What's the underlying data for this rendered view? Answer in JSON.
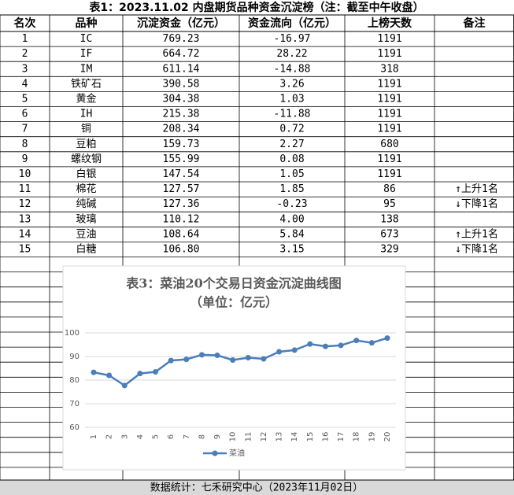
{
  "header": {
    "title": "表1：2023.11.02 内盘期货品种资金沉淀榜（注：截至中午收盘）"
  },
  "table": {
    "columns": [
      "名次",
      "品种",
      "沉淀资金（亿元）",
      "资金流向（亿元）",
      "上榜天数",
      "备注"
    ],
    "rows": [
      [
        "1",
        "IC",
        "769.23",
        "-16.97",
        "1191",
        ""
      ],
      [
        "2",
        "IF",
        "664.72",
        "28.22",
        "1191",
        ""
      ],
      [
        "3",
        "IM",
        "611.14",
        "-14.88",
        "318",
        ""
      ],
      [
        "4",
        "铁矿石",
        "390.58",
        "3.26",
        "1191",
        ""
      ],
      [
        "5",
        "黄金",
        "304.38",
        "1.03",
        "1191",
        ""
      ],
      [
        "6",
        "IH",
        "215.38",
        "-11.88",
        "1191",
        ""
      ],
      [
        "7",
        "铜",
        "208.34",
        "0.72",
        "1191",
        ""
      ],
      [
        "8",
        "豆粕",
        "159.73",
        "2.27",
        "680",
        ""
      ],
      [
        "9",
        "螺纹钢",
        "155.99",
        "0.08",
        "1191",
        ""
      ],
      [
        "10",
        "白银",
        "147.54",
        "1.05",
        "1191",
        ""
      ],
      [
        "11",
        "棉花",
        "127.57",
        "1.85",
        "86",
        "↑上升1名"
      ],
      [
        "12",
        "纯碱",
        "127.36",
        "-0.23",
        "95",
        "↓下降1名"
      ],
      [
        "13",
        "玻璃",
        "110.12",
        "4.00",
        "138",
        ""
      ],
      [
        "14",
        "豆油",
        "108.64",
        "5.84",
        "673",
        "↑上升1名"
      ],
      [
        "15",
        "白糖",
        "106.80",
        "3.15",
        "329",
        "↓下降1名"
      ]
    ]
  },
  "footer": {
    "text": "数据统计：七禾研究中心（2023年11月02日）"
  },
  "chart_data": {
    "type": "line",
    "title": "表3：菜油20个交易日资金沉淀曲线图",
    "subtitle": "（单位：亿元）",
    "categories": [
      "1",
      "2",
      "3",
      "4",
      "5",
      "6",
      "7",
      "8",
      "9",
      "10",
      "11",
      "12",
      "13",
      "14",
      "15",
      "16",
      "17",
      "18",
      "19",
      "20"
    ],
    "series": [
      {
        "name": "菜油",
        "color": "#4a7ebb",
        "values": [
          83.3,
          82.0,
          77.7,
          82.8,
          83.5,
          88.3,
          88.8,
          90.7,
          90.5,
          88.5,
          89.5,
          89.0,
          92.0,
          92.7,
          95.3,
          94.3,
          94.7,
          96.8,
          95.8,
          97.8
        ]
      }
    ],
    "ylim": [
      60,
      100
    ],
    "yticks": [
      60,
      70,
      80,
      90,
      100
    ],
    "grid": true,
    "legend": "bottom"
  }
}
